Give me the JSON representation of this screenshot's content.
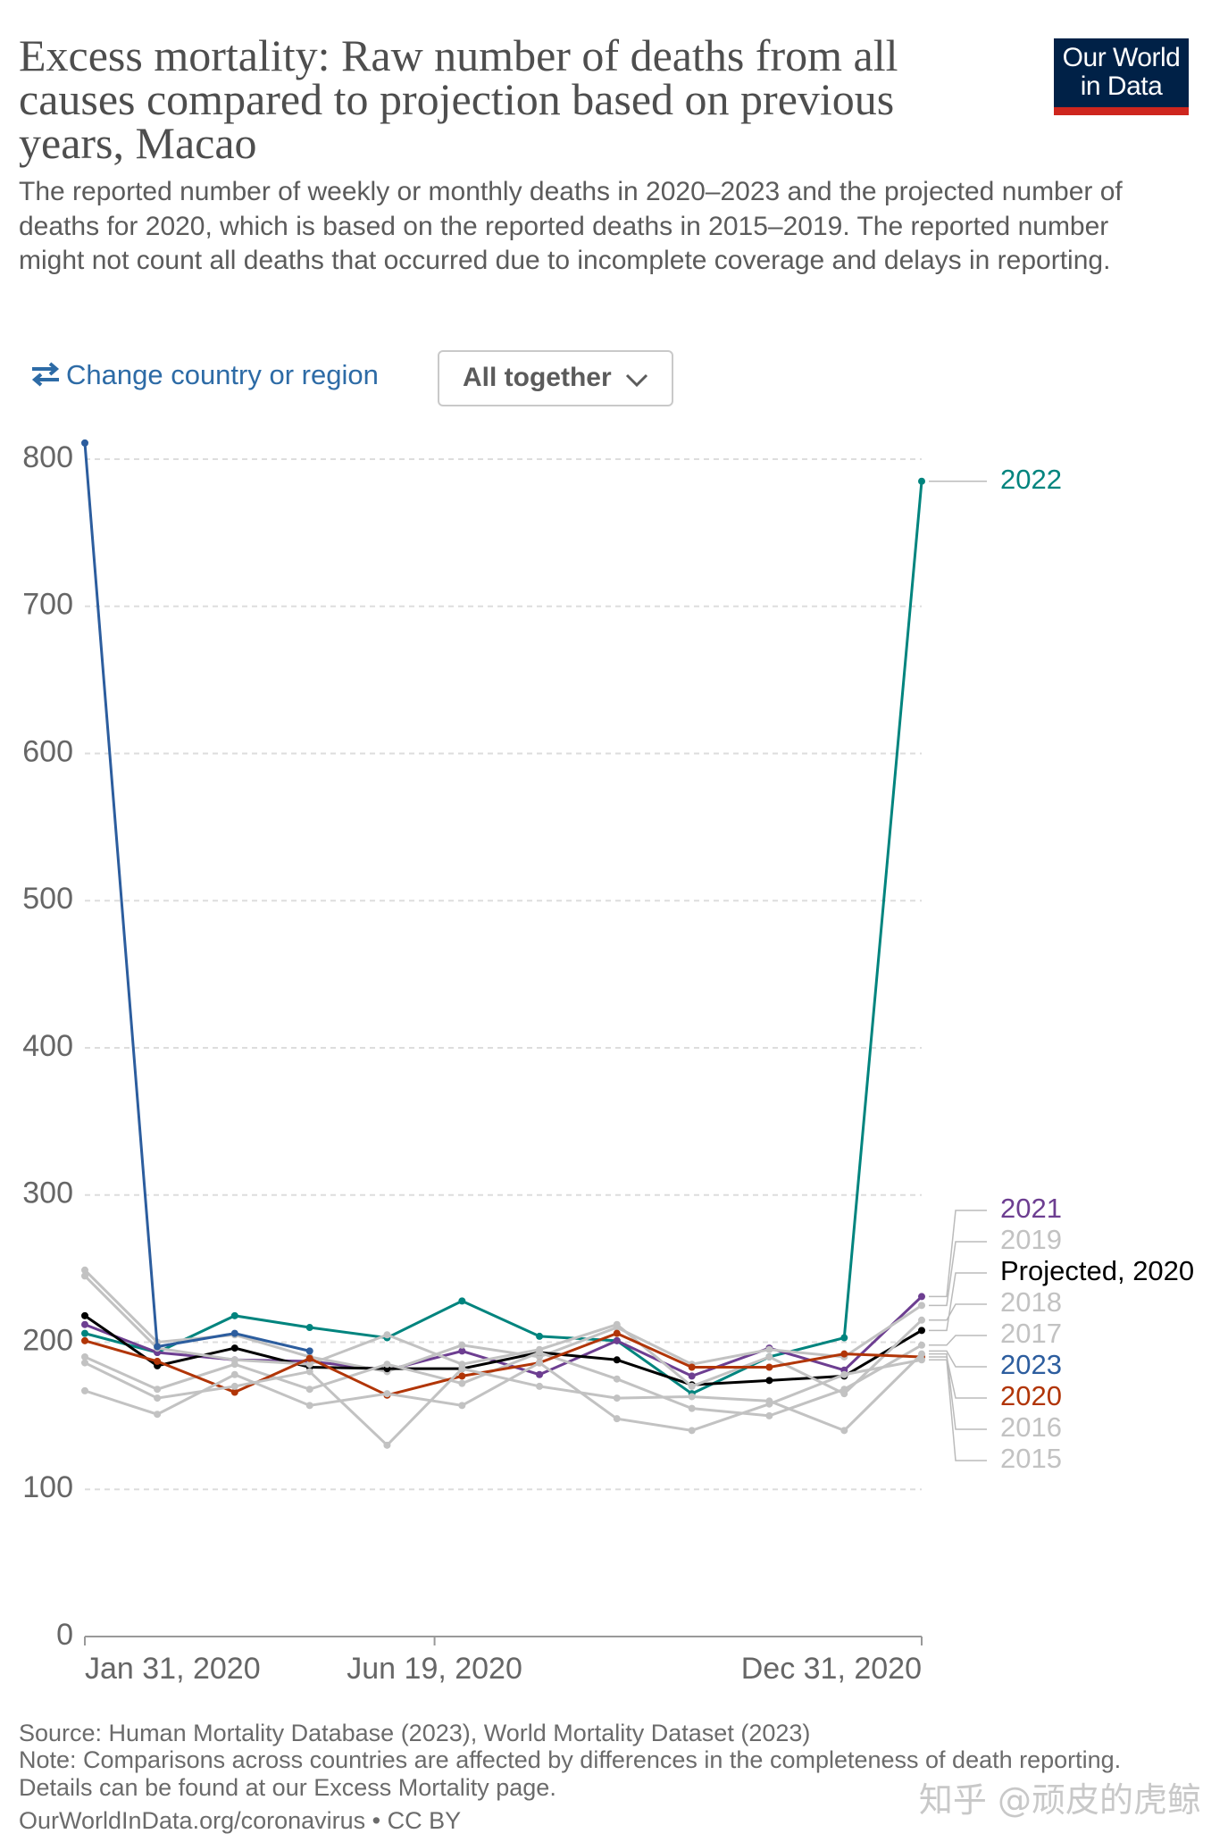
{
  "header": {
    "title": "Excess mortality: Raw number of deaths from all causes compared to projection based on previous years, Macao",
    "subtitle": "The reported number of weekly or monthly deaths in 2020–2023 and the projected number of deaths for 2020, which is based on the reported deaths in 2015–2019. The reported number might not count all deaths that occurred due to incomplete coverage and delays in reporting.",
    "logo": [
      "Our World",
      "in Data"
    ]
  },
  "controls": {
    "change": "Change country or region",
    "dropdown": "All together"
  },
  "chart_data": {
    "type": "line",
    "x": [
      "2020-01-31",
      "2020-02-29",
      "2020-03-31",
      "2020-04-30",
      "2020-05-31",
      "2020-06-30",
      "2020-07-31",
      "2020-08-31",
      "2020-09-30",
      "2020-10-31",
      "2020-11-30",
      "2020-12-31"
    ],
    "xlim": [
      "2020-01-31",
      "2020-12-31"
    ],
    "xticks": [
      {
        "value": "2020-01-31",
        "label": "Jan 31, 2020"
      },
      {
        "value": "2020-06-19",
        "label": "Jun 19, 2020"
      },
      {
        "value": "2020-12-31",
        "label": "Dec 31, 2020"
      }
    ],
    "ylim": [
      0,
      800
    ],
    "yticks": [
      0,
      100,
      200,
      300,
      400,
      500,
      600,
      700,
      800
    ],
    "grid": true,
    "series": [
      {
        "name": "2022",
        "color": "#00847e",
        "values": [
          206,
          193,
          218,
          210,
          203,
          228,
          204,
          201,
          165,
          190,
          203,
          785
        ]
      },
      {
        "name": "2021",
        "color": "#6d3e91",
        "values": [
          212,
          193,
          188,
          187,
          181,
          194,
          178,
          201,
          177,
          196,
          181,
          231
        ]
      },
      {
        "name": "2019",
        "color": "#c2c2c2",
        "values": [
          249,
          200,
          205,
          190,
          180,
          198,
          190,
          210,
          185,
          195,
          190,
          225
        ]
      },
      {
        "name": "Projected, 2020",
        "color": "#000000",
        "values": [
          218,
          184,
          196,
          183,
          182,
          182,
          193,
          188,
          171,
          174,
          177,
          208
        ]
      },
      {
        "name": "2018",
        "color": "#c2c2c2",
        "values": [
          245,
          196,
          188,
          185,
          205,
          185,
          195,
          212,
          170,
          190,
          165,
          215
        ]
      },
      {
        "name": "2017",
        "color": "#c2c2c2",
        "values": [
          190,
          168,
          185,
          168,
          185,
          172,
          193,
          175,
          155,
          150,
          168,
          198
        ]
      },
      {
        "name": "2023",
        "color": "#2c5d9e",
        "values": [
          811,
          197,
          206,
          194,
          null,
          null,
          null,
          null,
          null,
          null,
          null,
          null
        ]
      },
      {
        "name": "2020",
        "color": "#b13507",
        "values": [
          201,
          187,
          166,
          189,
          164,
          177,
          186,
          206,
          183,
          183,
          192,
          190
        ]
      },
      {
        "name": "2016",
        "color": "#c2c2c2",
        "values": [
          186,
          162,
          170,
          180,
          130,
          182,
          170,
          162,
          163,
          160,
          140,
          192
        ]
      },
      {
        "name": "2015",
        "color": "#c2c2c2",
        "values": [
          167,
          151,
          178,
          157,
          165,
          157,
          186,
          148,
          140,
          158,
          178,
          188
        ]
      }
    ]
  },
  "footer": {
    "source": "Source: Human Mortality Database (2023), World Mortality Dataset (2023)",
    "note": "Note: Comparisons across countries are affected by differences in the completeness of death reporting.",
    "details": "Details can be found at our Excess Mortality page.",
    "url": "OurWorldInData.org/coronavirus • CC BY",
    "watermark": "知乎 @顽皮的虎鲸"
  }
}
